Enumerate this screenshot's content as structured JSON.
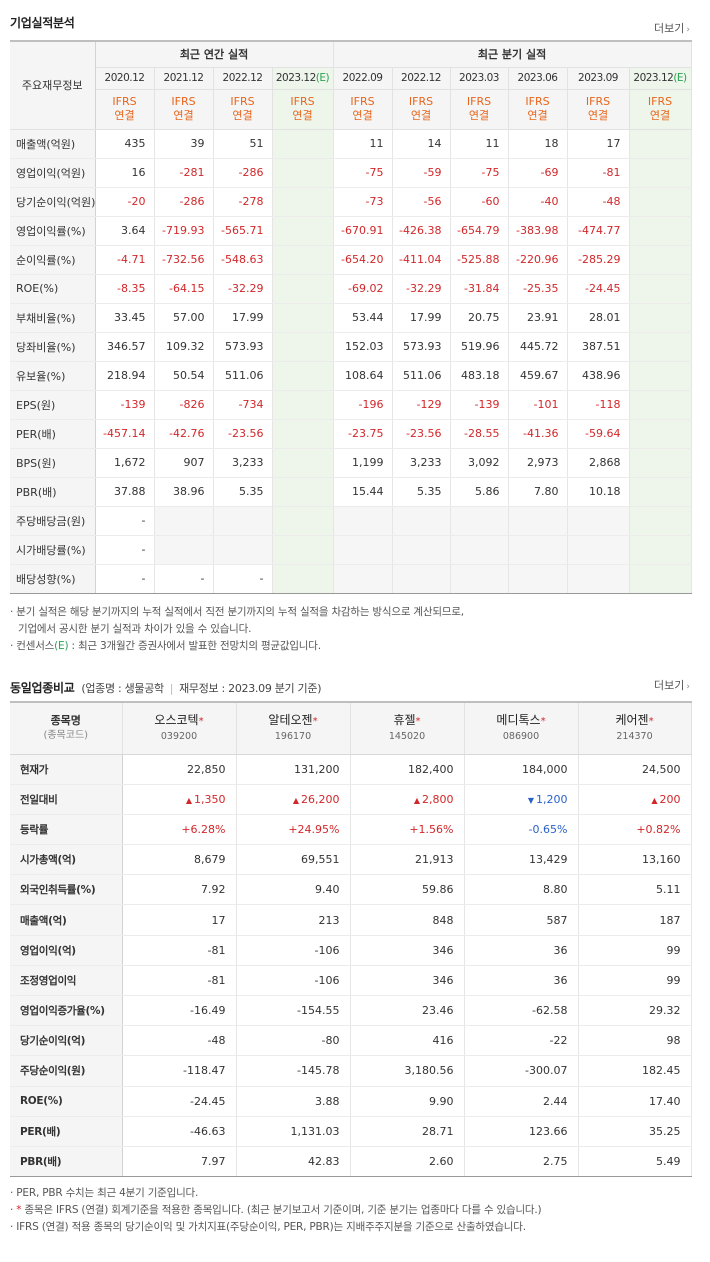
{
  "section1": {
    "title": "기업실적분석",
    "more": "더보기"
  },
  "t1": {
    "row_header": "주요재무정보",
    "group_annual": "최근 연간 실적",
    "group_quarter": "최근 분기 실적",
    "periods": [
      "2020.12",
      "2021.12",
      "2022.12",
      "2023.12",
      "2022.09",
      "2022.12",
      "2023.03",
      "2023.06",
      "2023.09",
      "2023.12"
    ],
    "est_mark": "(E)",
    "ifrs_line1": "IFRS",
    "ifrs_line2": "연결",
    "rows": [
      {
        "label": "매출액(억원)",
        "values": [
          "435",
          "39",
          "51",
          "",
          "11",
          "14",
          "11",
          "18",
          "17",
          ""
        ]
      },
      {
        "label": "영업이익(억원)",
        "values": [
          "16",
          "-281",
          "-286",
          "",
          "-75",
          "-59",
          "-75",
          "-69",
          "-81",
          ""
        ]
      },
      {
        "label": "당기순이익(억원)",
        "values": [
          "-20",
          "-286",
          "-278",
          "",
          "-73",
          "-56",
          "-60",
          "-40",
          "-48",
          ""
        ]
      },
      {
        "label": "영업이익률(%)",
        "values": [
          "3.64",
          "-719.93",
          "-565.71",
          "",
          "-670.91",
          "-426.38",
          "-654.79",
          "-383.98",
          "-474.77",
          ""
        ]
      },
      {
        "label": "순이익률(%)",
        "values": [
          "-4.71",
          "-732.56",
          "-548.63",
          "",
          "-654.20",
          "-411.04",
          "-525.88",
          "-220.96",
          "-285.29",
          ""
        ]
      },
      {
        "label": "ROE(%)",
        "values": [
          "-8.35",
          "-64.15",
          "-32.29",
          "",
          "-69.02",
          "-32.29",
          "-31.84",
          "-25.35",
          "-24.45",
          ""
        ]
      },
      {
        "label": "부채비율(%)",
        "values": [
          "33.45",
          "57.00",
          "17.99",
          "",
          "53.44",
          "17.99",
          "20.75",
          "23.91",
          "28.01",
          ""
        ]
      },
      {
        "label": "당좌비율(%)",
        "values": [
          "346.57",
          "109.32",
          "573.93",
          "",
          "152.03",
          "573.93",
          "519.96",
          "445.72",
          "387.51",
          ""
        ]
      },
      {
        "label": "유보율(%)",
        "values": [
          "218.94",
          "50.54",
          "511.06",
          "",
          "108.64",
          "511.06",
          "483.18",
          "459.67",
          "438.96",
          ""
        ]
      },
      {
        "label": "EPS(원)",
        "values": [
          "-139",
          "-826",
          "-734",
          "",
          "-196",
          "-129",
          "-139",
          "-101",
          "-118",
          ""
        ]
      },
      {
        "label": "PER(배)",
        "values": [
          "-457.14",
          "-42.76",
          "-23.56",
          "",
          "-23.75",
          "-23.56",
          "-28.55",
          "-41.36",
          "-59.64",
          ""
        ]
      },
      {
        "label": "BPS(원)",
        "values": [
          "1,672",
          "907",
          "3,233",
          "",
          "1,199",
          "3,233",
          "3,092",
          "2,973",
          "2,868",
          ""
        ]
      },
      {
        "label": "PBR(배)",
        "values": [
          "37.88",
          "38.96",
          "5.35",
          "",
          "15.44",
          "5.35",
          "5.86",
          "7.80",
          "10.18",
          ""
        ]
      },
      {
        "label": "주당배당금(원)",
        "values": [
          "-",
          "",
          "",
          "",
          "",
          "",
          "",
          "",
          "",
          ""
        ]
      },
      {
        "label": "시가배당률(%)",
        "values": [
          "-",
          "",
          "",
          "",
          "",
          "",
          "",
          "",
          "",
          ""
        ]
      },
      {
        "label": "배당성향(%)",
        "values": [
          "-",
          "-",
          "-",
          "",
          "",
          "",
          "",
          "",
          "",
          ""
        ]
      }
    ]
  },
  "notes1": {
    "line1": "분기 실적은 해당 분기까지의 누적 실적에서 직전 분기까지의 누적 실적을 차감하는 방식으로 계산되므로,",
    "line2": "기업에서 공시한 분기 실적과 차이가 있을 수 있습니다.",
    "line3a": "컨센서스",
    "line3e": "(E)",
    "line3b": ": 최근 3개월간 증권사에서 발표한 전망치의 평균값입니다."
  },
  "section2": {
    "title": "동일업종비교",
    "industry": "(업종명 : 생물공학",
    "basis": "재무정보 : 2023.09 분기 기준)",
    "more": "더보기"
  },
  "t2": {
    "head_label": "종목명",
    "head_sub": "(종목코드)",
    "star": "*",
    "companies": [
      {
        "name": "오스코텍",
        "code": "039200"
      },
      {
        "name": "알테오젠",
        "code": "196170"
      },
      {
        "name": "휴젤",
        "code": "145020"
      },
      {
        "name": "메디톡스",
        "code": "086900"
      },
      {
        "name": "케어젠",
        "code": "214370"
      }
    ],
    "change_dirs": [
      "up",
      "up",
      "up",
      "down",
      "up"
    ],
    "rows": [
      {
        "label": "현재가",
        "values": [
          "22,850",
          "131,200",
          "182,400",
          "184,000",
          "24,500"
        ]
      },
      {
        "label": "전일대비",
        "values": [
          "1,350",
          "26,200",
          "2,800",
          "1,200",
          "200"
        ]
      },
      {
        "label": "등락률",
        "values": [
          "+6.28%",
          "+24.95%",
          "+1.56%",
          "-0.65%",
          "+0.82%"
        ]
      },
      {
        "label": "시가총액(억)",
        "values": [
          "8,679",
          "69,551",
          "21,913",
          "13,429",
          "13,160"
        ]
      },
      {
        "label": "외국인취득률(%)",
        "values": [
          "7.92",
          "9.40",
          "59.86",
          "8.80",
          "5.11"
        ]
      },
      {
        "label": "매출액(억)",
        "values": [
          "17",
          "213",
          "848",
          "587",
          "187"
        ]
      },
      {
        "label": "영업이익(억)",
        "values": [
          "-81",
          "-106",
          "346",
          "36",
          "99"
        ]
      },
      {
        "label": "조정영업이익",
        "values": [
          "-81",
          "-106",
          "346",
          "36",
          "99"
        ]
      },
      {
        "label": "영업이익증가율(%)",
        "values": [
          "-16.49",
          "-154.55",
          "23.46",
          "-62.58",
          "29.32"
        ]
      },
      {
        "label": "당기순이익(억)",
        "values": [
          "-48",
          "-80",
          "416",
          "-22",
          "98"
        ]
      },
      {
        "label": "주당순이익(원)",
        "values": [
          "-118.47",
          "-145.78",
          "3,180.56",
          "-300.07",
          "182.45"
        ]
      },
      {
        "label": "ROE(%)",
        "values": [
          "-24.45",
          "3.88",
          "9.90",
          "2.44",
          "17.40"
        ]
      },
      {
        "label": "PER(배)",
        "values": [
          "-46.63",
          "1,131.03",
          "28.71",
          "123.66",
          "35.25"
        ]
      },
      {
        "label": "PBR(배)",
        "values": [
          "7.97",
          "42.83",
          "2.60",
          "2.75",
          "5.49"
        ]
      }
    ]
  },
  "notes2": {
    "line1": "PER, PBR 수치는 최근 4분기 기준입니다.",
    "line2a": "*",
    "line2b": "종목은 IFRS (연결) 회계기준을 적용한 종목입니다. (최근 분기보고서 기준이며, 기준 분기는 업종마다 다를 수 있습니다.)",
    "line3": "IFRS (연결) 적용 종목의 당기순이익 및 가치지표(주당순이익, PER, PBR)는 지배주주지분을 기준으로 산출하였습니다."
  }
}
